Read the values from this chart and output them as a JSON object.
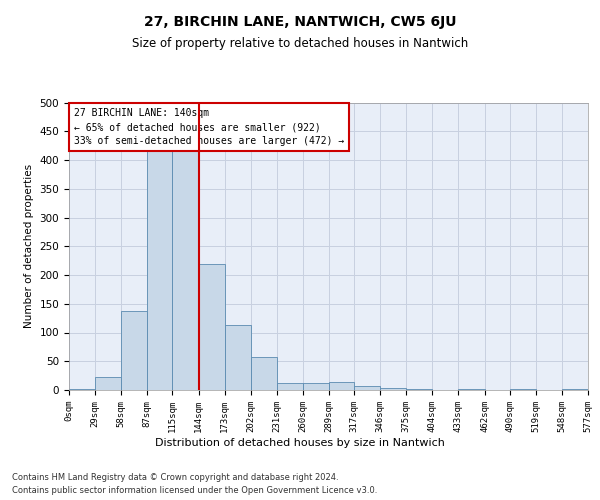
{
  "title": "27, BIRCHIN LANE, NANTWICH, CW5 6JU",
  "subtitle": "Size of property relative to detached houses in Nantwich",
  "xlabel": "Distribution of detached houses by size in Nantwich",
  "ylabel": "Number of detached properties",
  "footer_line1": "Contains HM Land Registry data © Crown copyright and database right 2024.",
  "footer_line2": "Contains public sector information licensed under the Open Government Licence v3.0.",
  "annotation_title": "27 BIRCHIN LANE: 140sqm",
  "annotation_line2": "← 65% of detached houses are smaller (922)",
  "annotation_line3": "33% of semi-detached houses are larger (472) →",
  "property_size": 140,
  "vline_x": 144,
  "bar_edges": [
    0,
    29,
    58,
    87,
    115,
    144,
    173,
    202,
    231,
    260,
    289,
    317,
    346,
    375,
    404,
    433,
    462,
    490,
    519,
    548,
    577
  ],
  "bar_heights": [
    2,
    22,
    137,
    415,
    415,
    220,
    113,
    57,
    12,
    13,
    14,
    7,
    4,
    1,
    0,
    1,
    0,
    1,
    0,
    2
  ],
  "bar_color": "#c8d8e8",
  "bar_edge_color": "#5a8ab0",
  "vline_color": "#cc0000",
  "background_color": "#e8eef8",
  "grid_color": "#c8d0e0",
  "ylim": [
    0,
    500
  ],
  "yticks": [
    0,
    50,
    100,
    150,
    200,
    250,
    300,
    350,
    400,
    450,
    500
  ],
  "title_fontsize": 10,
  "subtitle_fontsize": 8.5,
  "ylabel_fontsize": 7.5,
  "ytick_fontsize": 7.5,
  "xtick_fontsize": 6.5,
  "annotation_fontsize": 7,
  "xlabel_fontsize": 8,
  "footer_fontsize": 6
}
